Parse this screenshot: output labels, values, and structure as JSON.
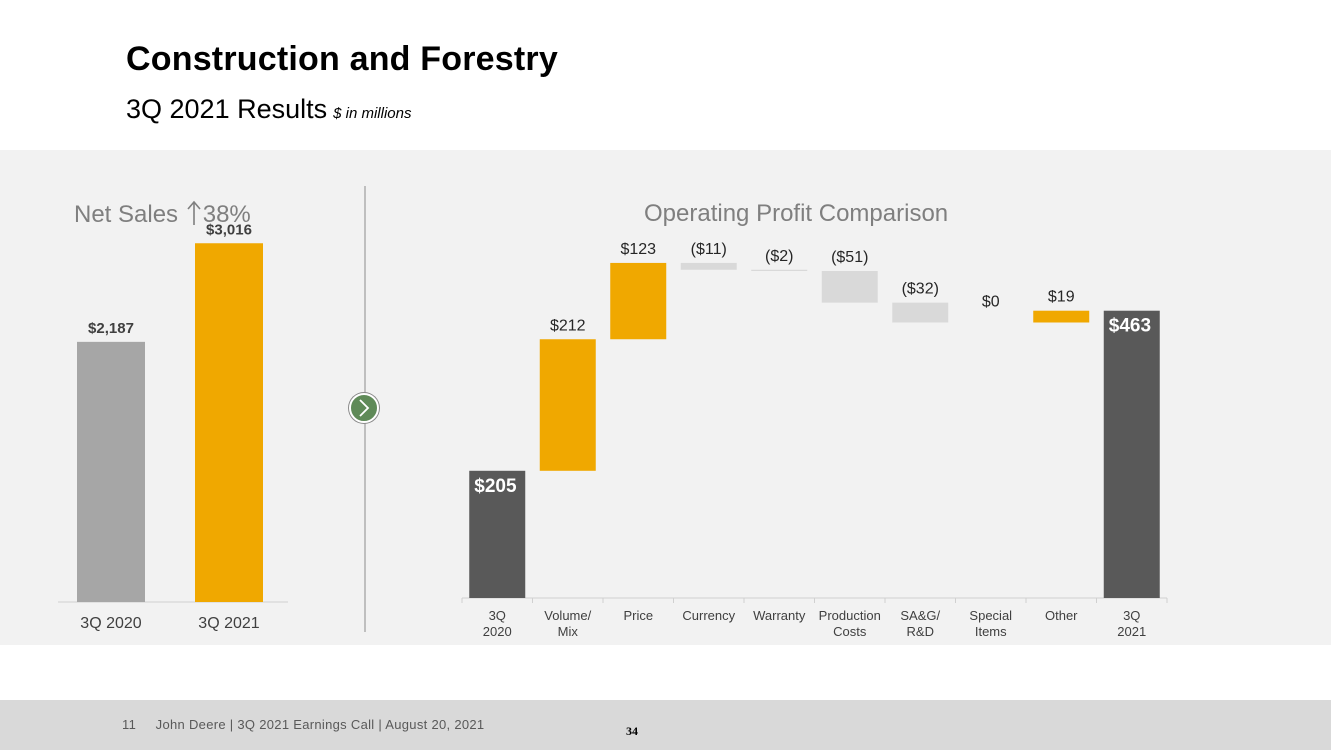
{
  "title": "Construction and Forestry",
  "subtitle": "3Q 2021 Results",
  "units_note": "$ in millions",
  "colors": {
    "gray_bar": "#a6a6a6",
    "orange": "#f0a800",
    "dark": "#595959",
    "neutral": "#d9d9d9"
  },
  "chart_data": [
    {
      "type": "bar",
      "title_prefix": "Net Sales",
      "title_suffix": "38%",
      "title_icon": "up-arrow-icon",
      "categories": [
        "3Q 2020",
        "3Q 2021"
      ],
      "values": [
        2187,
        3016
      ],
      "labels": [
        "$2,187",
        "$3,016"
      ],
      "ylim": [
        0,
        3800
      ]
    },
    {
      "type": "bar",
      "subtype": "waterfall",
      "title": "Operating Profit Comparison",
      "ylim": [
        -20,
        520
      ],
      "items": [
        {
          "category": "3Q 2020",
          "kind": "total",
          "value": 205,
          "label": "$205"
        },
        {
          "category": "Volume/ Mix",
          "kind": "delta",
          "value": 212,
          "label": "$212"
        },
        {
          "category": "Price",
          "kind": "delta",
          "value": 123,
          "label": "$123"
        },
        {
          "category": "Currency",
          "kind": "delta",
          "value": -11,
          "label": "($11)"
        },
        {
          "category": "Warranty",
          "kind": "delta",
          "value": -2,
          "label": "($2)"
        },
        {
          "category": "Production Costs",
          "kind": "delta",
          "value": -51,
          "label": "($51)"
        },
        {
          "category": "SA&G/ R&D",
          "kind": "delta",
          "value": -32,
          "label": "($32)"
        },
        {
          "category": "Special Items",
          "kind": "delta",
          "value": 0,
          "label": "$0"
        },
        {
          "category": "Other",
          "kind": "delta",
          "value": 19,
          "label": "$19"
        },
        {
          "category": "3Q 2021",
          "kind": "total",
          "value": 463,
          "label": "$463"
        }
      ]
    }
  ],
  "footer": {
    "slide_number": "11",
    "text": "John Deere | 3Q 2021 Earnings Call | August 20, 2021",
    "page_number": "34"
  }
}
